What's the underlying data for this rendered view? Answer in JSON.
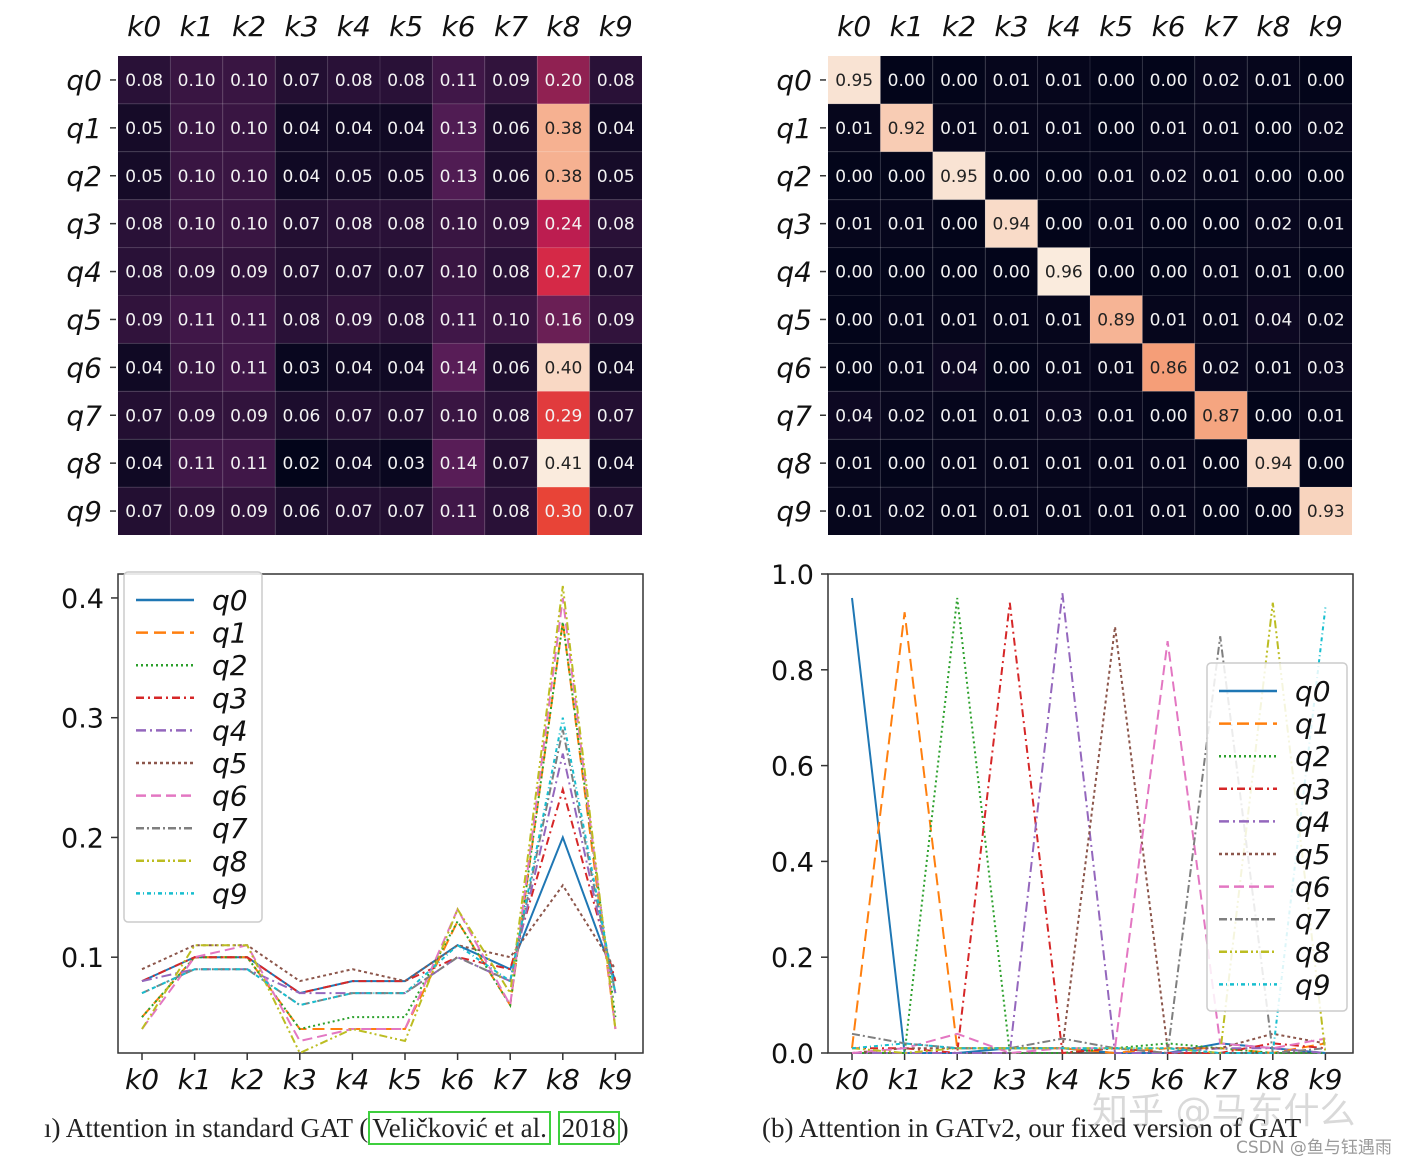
{
  "chart_data": [
    {
      "type": "heatmap",
      "panel": "a-top",
      "title": "",
      "x_labels": [
        "k0",
        "k1",
        "k2",
        "k3",
        "k4",
        "k5",
        "k6",
        "k7",
        "k8",
        "k9"
      ],
      "y_labels": [
        "q0",
        "q1",
        "q2",
        "q3",
        "q4",
        "q5",
        "q6",
        "q7",
        "q8",
        "q9"
      ],
      "vmin": 0.02,
      "vmax": 0.41,
      "colormap": "rocket",
      "values": [
        [
          "0.08",
          "0.10",
          "0.10",
          "0.07",
          "0.08",
          "0.08",
          "0.11",
          "0.09",
          "0.20",
          "0.08"
        ],
        [
          "0.05",
          "0.10",
          "0.10",
          "0.04",
          "0.04",
          "0.04",
          "0.13",
          "0.06",
          "0.38",
          "0.04"
        ],
        [
          "0.05",
          "0.10",
          "0.10",
          "0.04",
          "0.05",
          "0.05",
          "0.13",
          "0.06",
          "0.38",
          "0.05"
        ],
        [
          "0.08",
          "0.10",
          "0.10",
          "0.07",
          "0.08",
          "0.08",
          "0.10",
          "0.09",
          "0.24",
          "0.08"
        ],
        [
          "0.08",
          "0.09",
          "0.09",
          "0.07",
          "0.07",
          "0.07",
          "0.10",
          "0.08",
          "0.27",
          "0.07"
        ],
        [
          "0.09",
          "0.11",
          "0.11",
          "0.08",
          "0.09",
          "0.08",
          "0.11",
          "0.10",
          "0.16",
          "0.09"
        ],
        [
          "0.04",
          "0.10",
          "0.11",
          "0.03",
          "0.04",
          "0.04",
          "0.14",
          "0.06",
          "0.40",
          "0.04"
        ],
        [
          "0.07",
          "0.09",
          "0.09",
          "0.06",
          "0.07",
          "0.07",
          "0.10",
          "0.08",
          "0.29",
          "0.07"
        ],
        [
          "0.04",
          "0.11",
          "0.11",
          "0.02",
          "0.04",
          "0.03",
          "0.14",
          "0.07",
          "0.41",
          "0.04"
        ],
        [
          "0.07",
          "0.09",
          "0.09",
          "0.06",
          "0.07",
          "0.07",
          "0.11",
          "0.08",
          "0.30",
          "0.07"
        ]
      ]
    },
    {
      "type": "heatmap",
      "panel": "b-top",
      "title": "",
      "x_labels": [
        "k0",
        "k1",
        "k2",
        "k3",
        "k4",
        "k5",
        "k6",
        "k7",
        "k8",
        "k9"
      ],
      "y_labels": [
        "q0",
        "q1",
        "q2",
        "q3",
        "q4",
        "q5",
        "q6",
        "q7",
        "q8",
        "q9"
      ],
      "vmin": 0.0,
      "vmax": 0.96,
      "colormap": "rocket",
      "values": [
        [
          "0.95",
          "0.00",
          "0.00",
          "0.01",
          "0.01",
          "0.00",
          "0.00",
          "0.02",
          "0.01",
          "0.00"
        ],
        [
          "0.01",
          "0.92",
          "0.01",
          "0.01",
          "0.01",
          "0.00",
          "0.01",
          "0.01",
          "0.00",
          "0.02"
        ],
        [
          "0.00",
          "0.00",
          "0.95",
          "0.00",
          "0.00",
          "0.01",
          "0.02",
          "0.01",
          "0.00",
          "0.00"
        ],
        [
          "0.01",
          "0.01",
          "0.00",
          "0.94",
          "0.00",
          "0.01",
          "0.00",
          "0.00",
          "0.02",
          "0.01"
        ],
        [
          "0.00",
          "0.00",
          "0.00",
          "0.00",
          "0.96",
          "0.00",
          "0.00",
          "0.01",
          "0.01",
          "0.00"
        ],
        [
          "0.00",
          "0.01",
          "0.01",
          "0.01",
          "0.01",
          "0.89",
          "0.01",
          "0.01",
          "0.04",
          "0.02"
        ],
        [
          "0.00",
          "0.01",
          "0.04",
          "0.00",
          "0.01",
          "0.01",
          "0.86",
          "0.02",
          "0.01",
          "0.03"
        ],
        [
          "0.04",
          "0.02",
          "0.01",
          "0.01",
          "0.03",
          "0.01",
          "0.00",
          "0.87",
          "0.00",
          "0.01"
        ],
        [
          "0.01",
          "0.00",
          "0.01",
          "0.01",
          "0.01",
          "0.01",
          "0.01",
          "0.00",
          "0.94",
          "0.00"
        ],
        [
          "0.01",
          "0.02",
          "0.01",
          "0.01",
          "0.01",
          "0.01",
          "0.01",
          "0.00",
          "0.00",
          "0.93"
        ]
      ]
    },
    {
      "type": "line",
      "panel": "a-bottom",
      "title": "",
      "categories": [
        "k0",
        "k1",
        "k2",
        "k3",
        "k4",
        "k5",
        "k6",
        "k7",
        "k8",
        "k9"
      ],
      "ylim": [
        0.02,
        0.42
      ],
      "yticks": [
        "0.1",
        "0.2",
        "0.3",
        "0.4"
      ],
      "ytick_values": [
        0.1,
        0.2,
        0.3,
        0.4
      ],
      "legend_position": "top-left",
      "source": "heatmap-a"
    },
    {
      "type": "line",
      "panel": "b-bottom",
      "title": "",
      "categories": [
        "k0",
        "k1",
        "k2",
        "k3",
        "k4",
        "k5",
        "k6",
        "k7",
        "k8",
        "k9"
      ],
      "ylim": [
        0.0,
        1.0
      ],
      "yticks": [
        "0.0",
        "0.2",
        "0.4",
        "0.6",
        "0.8",
        "1.0"
      ],
      "ytick_values": [
        0.0,
        0.2,
        0.4,
        0.6,
        0.8,
        1.0
      ],
      "legend_position": "center-right",
      "source": "heatmap-b"
    }
  ],
  "legend": {
    "series": [
      {
        "name": "q0",
        "color": "#1f77b4",
        "dash": ""
      },
      {
        "name": "q1",
        "color": "#ff7f0e",
        "dash": "12,6"
      },
      {
        "name": "q2",
        "color": "#2ca02c",
        "dash": "2,3"
      },
      {
        "name": "q3",
        "color": "#d62728",
        "dash": "8,4,2,4"
      },
      {
        "name": "q4",
        "color": "#9467bd",
        "dash": "10,4,2,4"
      },
      {
        "name": "q5",
        "color": "#8c564b",
        "dash": "3,3"
      },
      {
        "name": "q6",
        "color": "#e377c2",
        "dash": "10,5"
      },
      {
        "name": "q7",
        "color": "#7f7f7f",
        "dash": "8,3,2,3"
      },
      {
        "name": "q8",
        "color": "#bcbd22",
        "dash": "8,3,2,3,2,3"
      },
      {
        "name": "q9",
        "color": "#17becf",
        "dash": "4,3,1,3"
      }
    ]
  },
  "captions": {
    "a_prefix": "ı) Attention in standard GAT (",
    "a_cite_authors": "Veličković et al.",
    "a_cite_year": "2018",
    "a_suffix": ")",
    "b": "(b) Attention in GATv2, our fixed version of GAT"
  },
  "watermark": "知乎 @马东什么",
  "credit": "CSDN @鱼与钰遇雨"
}
